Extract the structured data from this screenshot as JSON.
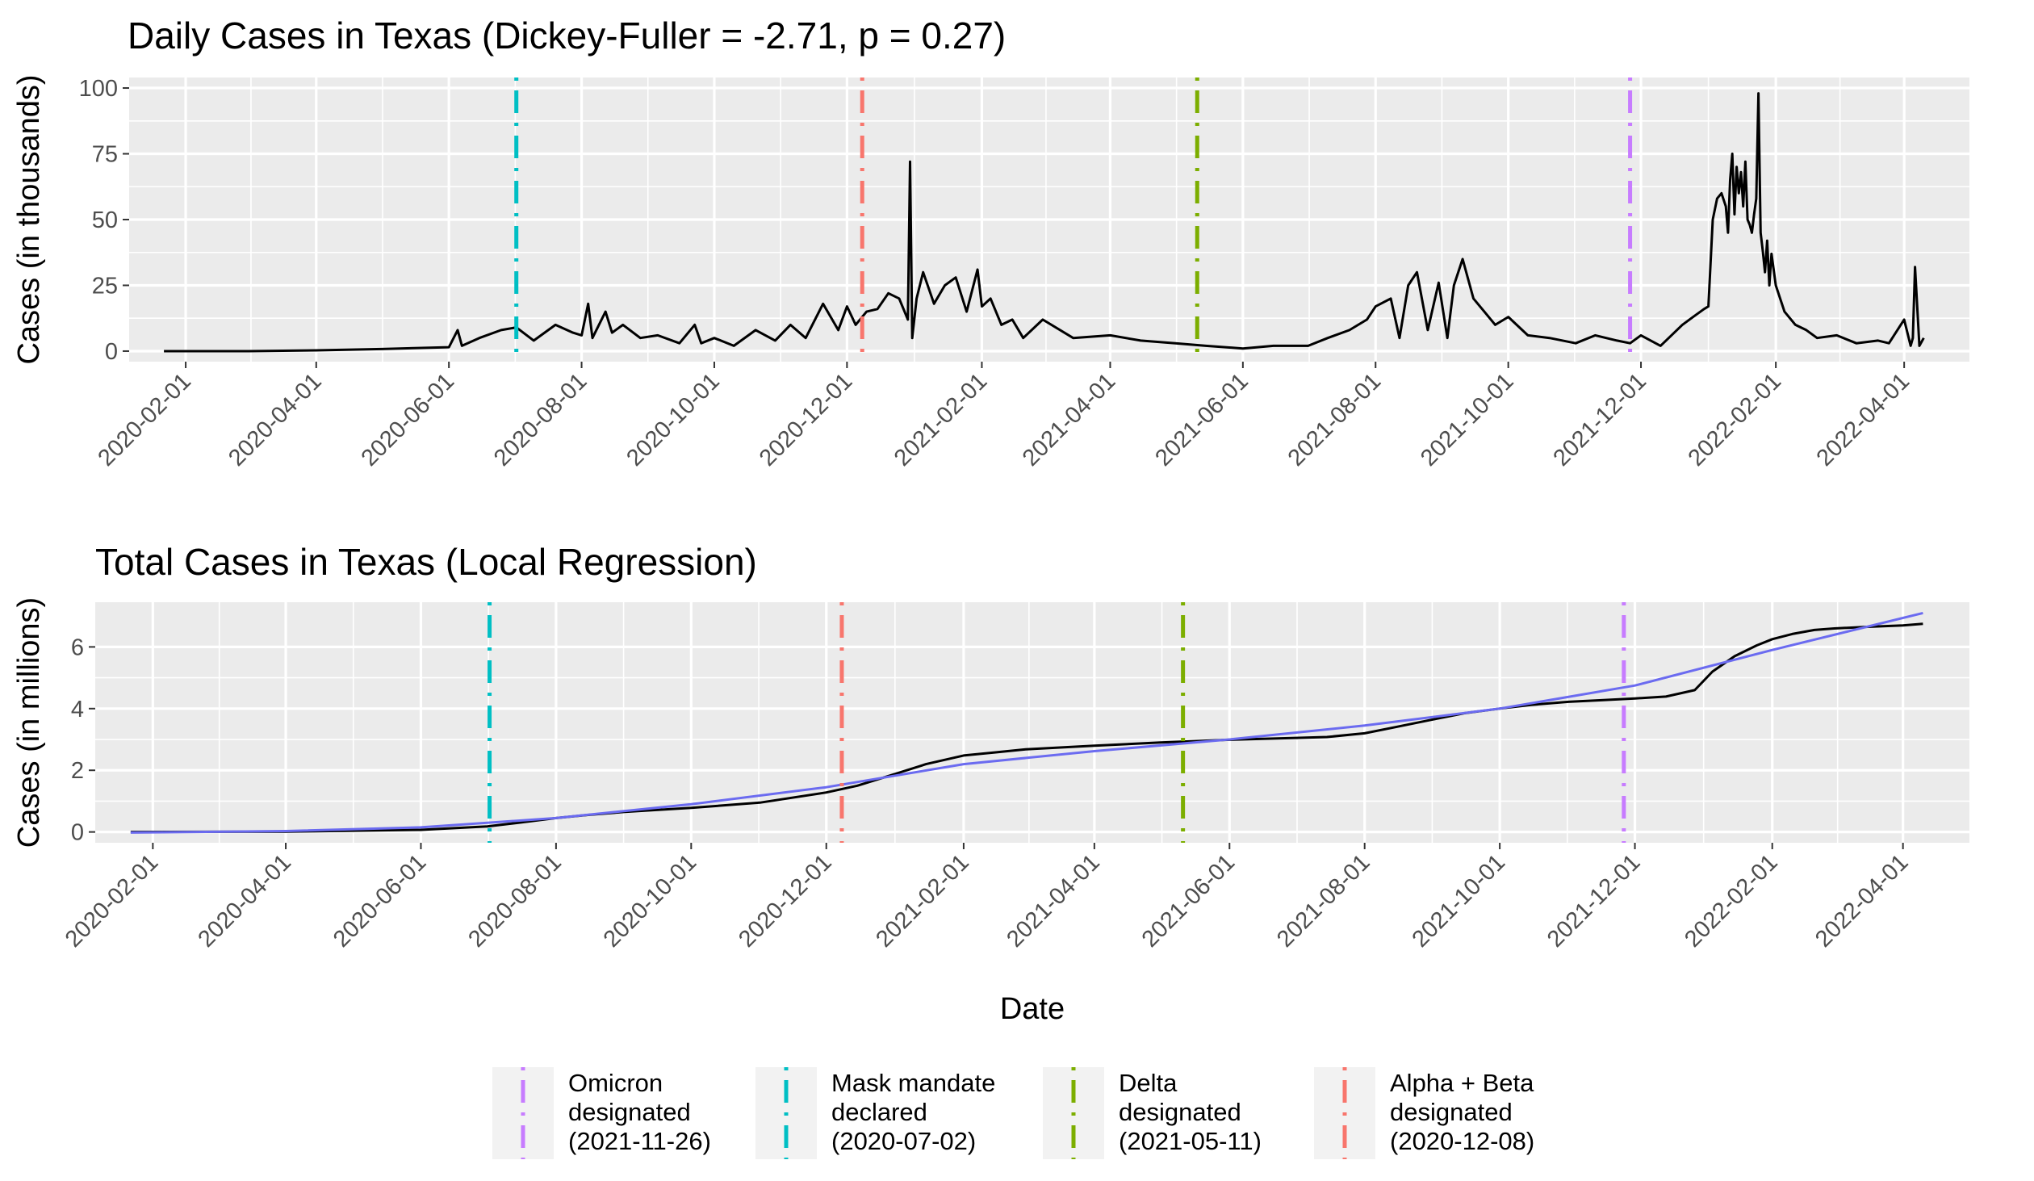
{
  "chart_data": [
    {
      "type": "line",
      "title": "Daily Cases in Texas (Dickey-Fuller = -2.71, p = 0.27)",
      "xlabel": "",
      "ylabel": "Cases (in thousands)",
      "ylim": [
        -4,
        104
      ],
      "xlim": [
        "2020-01-06",
        "2022-05-01"
      ],
      "yticks": [
        0,
        25,
        50,
        75,
        100
      ],
      "xticks": [
        "2020-02-01",
        "2020-04-01",
        "2020-06-01",
        "2020-08-01",
        "2020-10-01",
        "2020-12-01",
        "2021-02-01",
        "2021-04-01",
        "2021-06-01",
        "2021-08-01",
        "2021-10-01",
        "2021-12-01",
        "2022-02-01",
        "2022-04-01"
      ],
      "grid": true,
      "series": [
        {
          "color": "#000000",
          "x": [
            "2020-01-22",
            "2020-03-01",
            "2020-04-01",
            "2020-05-01",
            "2020-06-01",
            "2020-06-05",
            "2020-06-07",
            "2020-06-15",
            "2020-06-25",
            "2020-07-02",
            "2020-07-10",
            "2020-07-20",
            "2020-07-28",
            "2020-08-01",
            "2020-08-04",
            "2020-08-06",
            "2020-08-12",
            "2020-08-15",
            "2020-08-20",
            "2020-08-28",
            "2020-09-05",
            "2020-09-15",
            "2020-09-22",
            "2020-09-25",
            "2020-10-01",
            "2020-10-10",
            "2020-10-20",
            "2020-10-29",
            "2020-11-05",
            "2020-11-12",
            "2020-11-20",
            "2020-11-27",
            "2020-12-01",
            "2020-12-05",
            "2020-12-10",
            "2020-12-15",
            "2020-12-20",
            "2020-12-25",
            "2020-12-29",
            "2020-12-30",
            "2020-12-31",
            "2021-01-02",
            "2021-01-05",
            "2021-01-10",
            "2021-01-15",
            "2021-01-20",
            "2021-01-25",
            "2021-01-30",
            "2021-02-01",
            "2021-02-05",
            "2021-02-10",
            "2021-02-15",
            "2021-02-20",
            "2021-03-01",
            "2021-03-15",
            "2021-04-01",
            "2021-04-15",
            "2021-05-01",
            "2021-05-15",
            "2021-06-01",
            "2021-06-15",
            "2021-07-01",
            "2021-07-10",
            "2021-07-20",
            "2021-07-28",
            "2021-08-01",
            "2021-08-08",
            "2021-08-12",
            "2021-08-16",
            "2021-08-20",
            "2021-08-25",
            "2021-08-30",
            "2021-09-03",
            "2021-09-06",
            "2021-09-10",
            "2021-09-15",
            "2021-09-20",
            "2021-09-25",
            "2021-10-01",
            "2021-10-10",
            "2021-10-20",
            "2021-11-01",
            "2021-11-10",
            "2021-11-20",
            "2021-11-26",
            "2021-12-01",
            "2021-12-10",
            "2021-12-20",
            "2021-12-25",
            "2021-12-30",
            "2022-01-01",
            "2022-01-03",
            "2022-01-05",
            "2022-01-07",
            "2022-01-09",
            "2022-01-10",
            "2022-01-11",
            "2022-01-12",
            "2022-01-13",
            "2022-01-14",
            "2022-01-15",
            "2022-01-16",
            "2022-01-17",
            "2022-01-18",
            "2022-01-19",
            "2022-01-20",
            "2022-01-21",
            "2022-01-22",
            "2022-01-23",
            "2022-01-24",
            "2022-01-25",
            "2022-01-26",
            "2022-01-27",
            "2022-01-28",
            "2022-01-29",
            "2022-01-30",
            "2022-02-01",
            "2022-02-05",
            "2022-02-10",
            "2022-02-15",
            "2022-02-20",
            "2022-03-01",
            "2022-03-10",
            "2022-03-20",
            "2022-03-25",
            "2022-04-01",
            "2022-04-04",
            "2022-04-05",
            "2022-04-06",
            "2022-04-08",
            "2022-04-10"
          ],
          "y": [
            0,
            0,
            0.3,
            0.8,
            1.5,
            8,
            2,
            5,
            8,
            9,
            4,
            10,
            7,
            6,
            18,
            5,
            15,
            7,
            10,
            5,
            6,
            3,
            10,
            3,
            5,
            2,
            8,
            4,
            10,
            5,
            18,
            8,
            17,
            10,
            15,
            16,
            22,
            20,
            12,
            72,
            5,
            20,
            30,
            18,
            25,
            28,
            15,
            31,
            17,
            20,
            10,
            12,
            5,
            12,
            5,
            6,
            4,
            3,
            2,
            1,
            2,
            2,
            5,
            8,
            12,
            17,
            20,
            5,
            25,
            30,
            8,
            26,
            5,
            25,
            35,
            20,
            15,
            10,
            13,
            6,
            5,
            3,
            6,
            4,
            3,
            6,
            2,
            10,
            13,
            16,
            17,
            50,
            58,
            60,
            55,
            45,
            65,
            75,
            52,
            70,
            60,
            68,
            55,
            72,
            50,
            48,
            45,
            52,
            58,
            98,
            45,
            38,
            30,
            42,
            25,
            37,
            25,
            15,
            10,
            8,
            5,
            6,
            3,
            4,
            3,
            12,
            2,
            5,
            32,
            2,
            5
          ]
        }
      ],
      "vlines": [
        {
          "label": "Omicron designated (2021-11-26)",
          "date": "2021-11-26",
          "color": "#c77cff"
        },
        {
          "label": "Mask mandate declared (2020-07-02)",
          "date": "2020-07-02",
          "color": "#00bfc4"
        },
        {
          "label": "Delta designated (2021-05-11)",
          "date": "2021-05-11",
          "color": "#7cae00"
        },
        {
          "label": "Alpha + Beta designated (2020-12-08)",
          "date": "2020-12-08",
          "color": "#f8766d"
        }
      ]
    },
    {
      "type": "line",
      "title": "Total Cases in Texas (Local Regression)",
      "xlabel": "Date",
      "ylabel": "Cases (in millions)",
      "ylim": [
        -0.35,
        7.45
      ],
      "xlim": [
        "2020-01-06",
        "2022-05-01"
      ],
      "yticks": [
        0,
        2,
        4,
        6
      ],
      "xticks": [
        "2020-02-01",
        "2020-04-01",
        "2020-06-01",
        "2020-08-01",
        "2020-10-01",
        "2020-12-01",
        "2021-02-01",
        "2021-04-01",
        "2021-06-01",
        "2021-08-01",
        "2021-10-01",
        "2021-12-01",
        "2022-02-01",
        "2022-04-01"
      ],
      "grid": true,
      "series": [
        {
          "name": "total cases",
          "color": "#000000",
          "x": [
            "2020-01-22",
            "2020-04-01",
            "2020-06-01",
            "2020-07-01",
            "2020-07-15",
            "2020-08-01",
            "2020-08-15",
            "2020-09-01",
            "2020-10-01",
            "2020-11-01",
            "2020-12-01",
            "2020-12-15",
            "2021-01-01",
            "2021-01-15",
            "2021-02-01",
            "2021-02-15",
            "2021-03-01",
            "2021-04-01",
            "2021-05-01",
            "2021-06-01",
            "2021-07-01",
            "2021-07-15",
            "2021-08-01",
            "2021-08-15",
            "2021-09-01",
            "2021-09-15",
            "2021-10-01",
            "2021-10-15",
            "2021-11-01",
            "2021-11-15",
            "2021-12-01",
            "2021-12-15",
            "2021-12-28",
            "2022-01-05",
            "2022-01-15",
            "2022-01-25",
            "2022-02-01",
            "2022-02-10",
            "2022-02-20",
            "2022-03-01",
            "2022-03-15",
            "2022-04-01",
            "2022-04-10"
          ],
          "y": [
            0,
            0.01,
            0.07,
            0.18,
            0.3,
            0.45,
            0.55,
            0.65,
            0.78,
            0.95,
            1.28,
            1.5,
            1.88,
            2.2,
            2.48,
            2.58,
            2.68,
            2.8,
            2.9,
            2.99,
            3.05,
            3.08,
            3.2,
            3.4,
            3.65,
            3.85,
            4.0,
            4.12,
            4.22,
            4.27,
            4.33,
            4.39,
            4.6,
            5.2,
            5.7,
            6.05,
            6.25,
            6.42,
            6.55,
            6.6,
            6.65,
            6.7,
            6.75
          ]
        },
        {
          "name": "local regression",
          "color": "#6b6bf0",
          "x": [
            "2020-01-22",
            "2020-04-01",
            "2020-06-01",
            "2020-08-01",
            "2020-10-01",
            "2020-12-01",
            "2021-02-01",
            "2021-04-01",
            "2021-06-01",
            "2021-08-01",
            "2021-10-01",
            "2021-12-01",
            "2022-02-01",
            "2022-04-10"
          ],
          "y": [
            -0.02,
            0.03,
            0.15,
            0.45,
            0.9,
            1.45,
            2.2,
            2.62,
            3.0,
            3.45,
            4.0,
            4.75,
            5.9,
            7.1
          ]
        }
      ],
      "vlines": [
        {
          "label": "Omicron designated (2021-11-26)",
          "date": "2021-11-26",
          "color": "#c77cff"
        },
        {
          "label": "Mask mandate declared (2020-07-02)",
          "date": "2020-07-02",
          "color": "#00bfc4"
        },
        {
          "label": "Delta designated (2021-05-11)",
          "date": "2021-05-11",
          "color": "#7cae00"
        },
        {
          "label": "Alpha + Beta designated (2020-12-08)",
          "date": "2020-12-08",
          "color": "#f8766d"
        }
      ]
    }
  ],
  "legend": {
    "position": "bottom",
    "items": [
      {
        "lines": [
          "Omicron",
          "designated",
          "(2021-11-26)"
        ],
        "color": "#c77cff"
      },
      {
        "lines": [
          "Mask mandate",
          "declared",
          "(2020-07-02)"
        ],
        "color": "#00bfc4"
      },
      {
        "lines": [
          "Delta",
          "designated",
          "(2021-05-11)"
        ],
        "color": "#7cae00"
      },
      {
        "lines": [
          "Alpha + Beta",
          "designated",
          "(2020-12-08)"
        ],
        "color": "#f8766d"
      }
    ]
  }
}
